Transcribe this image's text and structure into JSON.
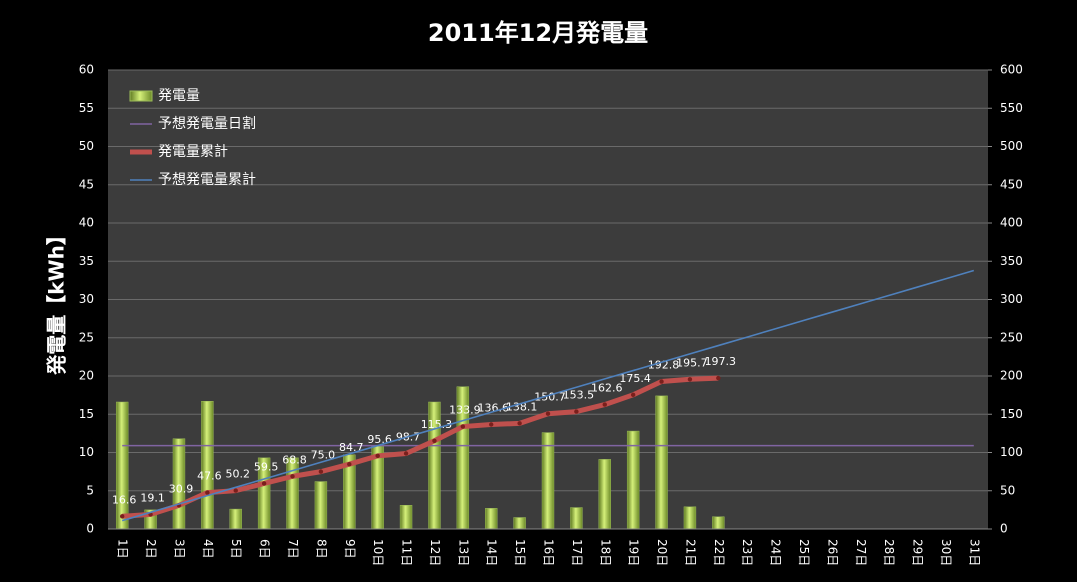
{
  "chart_data": {
    "type": "bar_line",
    "title": "2011年12月発電量",
    "ylabel": "発電量【kWh】",
    "categories": [
      "1日",
      "2日",
      "3日",
      "4日",
      "5日",
      "6日",
      "7日",
      "8日",
      "9日",
      "10日",
      "11日",
      "12日",
      "13日",
      "14日",
      "15日",
      "16日",
      "17日",
      "18日",
      "19日",
      "20日",
      "21日",
      "22日",
      "23日",
      "24日",
      "25日",
      "26日",
      "27日",
      "28日",
      "29日",
      "30日",
      "31日"
    ],
    "ylim": [
      0,
      60
    ],
    "yticks": [
      0,
      5,
      10,
      15,
      20,
      25,
      30,
      35,
      40,
      45,
      50,
      55,
      60
    ],
    "y2lim": [
      0,
      600
    ],
    "y2ticks": [
      0,
      50,
      100,
      150,
      200,
      250,
      300,
      350,
      400,
      450,
      500,
      550,
      600
    ],
    "grid": true,
    "legend": "upper left",
    "series": [
      {
        "name": "発電量",
        "type": "bar",
        "color": "#9bbb59",
        "values": [
          16.6,
          2.5,
          11.8,
          16.7,
          2.6,
          9.3,
          9.3,
          6.2,
          9.7,
          10.9,
          3.1,
          16.6,
          18.6,
          2.7,
          1.5,
          12.6,
          2.8,
          9.1,
          12.8,
          17.4,
          2.9,
          1.6,
          null,
          null,
          null,
          null,
          null,
          null,
          null,
          null,
          null
        ]
      },
      {
        "name": "予想発電量日割",
        "type": "line",
        "color": "#8064a2",
        "values": [
          10.9,
          10.9,
          10.9,
          10.9,
          10.9,
          10.9,
          10.9,
          10.9,
          10.9,
          10.9,
          10.9,
          10.9,
          10.9,
          10.9,
          10.9,
          10.9,
          10.9,
          10.9,
          10.9,
          10.9,
          10.9,
          10.9,
          10.9,
          10.9,
          10.9,
          10.9,
          10.9,
          10.9,
          10.9,
          10.9,
          10.9
        ]
      },
      {
        "name": "発電量累計",
        "type": "line",
        "color": "#c0504d",
        "axis": "y2",
        "markers": true,
        "values": [
          16.6,
          19.1,
          30.9,
          47.6,
          50.2,
          59.5,
          68.8,
          75.0,
          84.7,
          95.6,
          98.7,
          115.3,
          133.9,
          136.6,
          138.1,
          150.7,
          153.5,
          162.6,
          175.4,
          192.8,
          195.7,
          197.3,
          null,
          null,
          null,
          null,
          null,
          null,
          null,
          null,
          null
        ],
        "value_labels": [
          "16.6",
          "19.1",
          "30.9",
          "47.6",
          "50.2",
          "59.5",
          "68.8",
          "75.0",
          "84.7",
          "95.6",
          "98.7",
          "115.3",
          "133.9",
          "136.6",
          "138.1",
          "150.7",
          "153.5",
          "162.6",
          "175.4",
          "192.8",
          "195.7",
          "197.3",
          null,
          null,
          null,
          null,
          null,
          null,
          null,
          null,
          null
        ]
      },
      {
        "name": "予想発電量累計",
        "type": "line",
        "color": "#4f81bd",
        "axis": "y2",
        "values": [
          10.9,
          21.8,
          32.7,
          43.6,
          54.5,
          65.4,
          76.3,
          87.2,
          98.1,
          109,
          119.9,
          130.8,
          141.7,
          152.6,
          163.5,
          174.4,
          185.3,
          196.2,
          207.1,
          218,
          228.9,
          239.8,
          250.7,
          261.6,
          272.5,
          283.4,
          294.3,
          305.2,
          316.1,
          327,
          337.9
        ]
      }
    ]
  }
}
